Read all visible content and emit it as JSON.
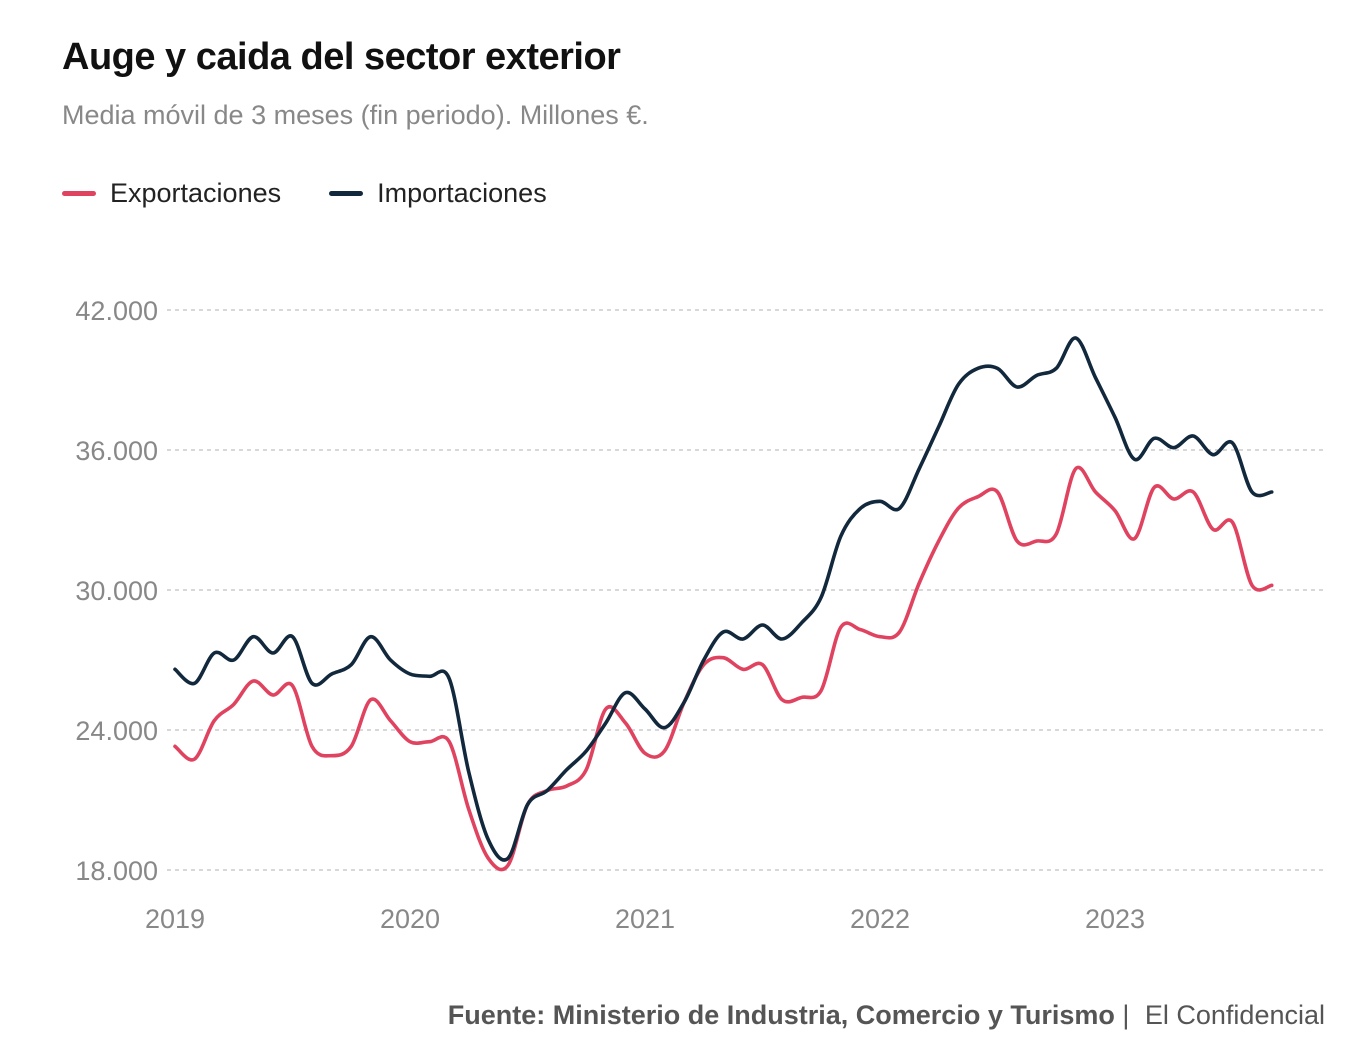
{
  "title": "Auge y caida del sector exterior",
  "subtitle": "Media móvil de 3 meses (fin periodo). Millones €.",
  "source": {
    "label": "Fuente: Ministerio de Industria, Comercio y Turismo",
    "separator": "|",
    "brand": "El Confidencial"
  },
  "colors": {
    "exports": "#e0435f",
    "imports": "#12283c",
    "grid": "#cccccc",
    "tick": "#888888"
  },
  "chart_data": {
    "type": "line",
    "title": "Auge y caida del sector exterior",
    "subtitle": "Media móvil de 3 meses (fin periodo). Millones €.",
    "xlabel": "",
    "ylabel": "",
    "ylim": [
      18000,
      42000
    ],
    "xlim": [
      2019.0,
      2024.0
    ],
    "grid": true,
    "legend_position": "top-left",
    "y_ticks": [
      {
        "value": 42000,
        "label": "42.000"
      },
      {
        "value": 36000,
        "label": "36.000"
      },
      {
        "value": 30000,
        "label": "30.000"
      },
      {
        "value": 24000,
        "label": "24.000"
      },
      {
        "value": 18000,
        "label": "18.000"
      }
    ],
    "x_ticks": [
      {
        "value": 2019,
        "label": "2019"
      },
      {
        "value": 2020,
        "label": "2020"
      },
      {
        "value": 2021,
        "label": "2021"
      },
      {
        "value": 2022,
        "label": "2022"
      },
      {
        "value": 2023,
        "label": "2023"
      }
    ],
    "x": [
      2019.0,
      2019.083,
      2019.167,
      2019.25,
      2019.333,
      2019.417,
      2019.5,
      2019.583,
      2019.667,
      2019.75,
      2019.833,
      2019.917,
      2020.0,
      2020.083,
      2020.167,
      2020.25,
      2020.333,
      2020.417,
      2020.5,
      2020.583,
      2020.667,
      2020.75,
      2020.833,
      2020.917,
      2021.0,
      2021.083,
      2021.167,
      2021.25,
      2021.333,
      2021.417,
      2021.5,
      2021.583,
      2021.667,
      2021.75,
      2021.833,
      2021.917,
      2022.0,
      2022.083,
      2022.167,
      2022.25,
      2022.333,
      2022.417,
      2022.5,
      2022.583,
      2022.667,
      2022.75,
      2022.833,
      2022.917,
      2023.0,
      2023.083,
      2023.167,
      2023.25,
      2023.333,
      2023.417,
      2023.5,
      2023.583,
      2023.667
    ],
    "series": [
      {
        "name": "Exportaciones",
        "color": "#e0435f",
        "values": [
          23300,
          22750,
          24400,
          25100,
          26100,
          25500,
          25900,
          23300,
          22900,
          23300,
          25300,
          24400,
          23500,
          23500,
          23500,
          20600,
          18500,
          18200,
          20800,
          21400,
          21600,
          22300,
          24900,
          24300,
          23000,
          23100,
          25200,
          26800,
          27100,
          26600,
          26800,
          25300,
          25400,
          25700,
          28400,
          28300,
          28000,
          28200,
          30300,
          32100,
          33500,
          34000,
          34200,
          32100,
          32100,
          32400,
          35200,
          34200,
          33400,
          32200,
          34400,
          33900,
          34200,
          32600,
          32900,
          30200,
          30200
        ]
      },
      {
        "name": "Importaciones",
        "color": "#12283c",
        "values": [
          26600,
          26000,
          27300,
          27000,
          28000,
          27300,
          28000,
          26000,
          26400,
          26800,
          28000,
          27000,
          26400,
          26300,
          26200,
          22200,
          19300,
          18500,
          20800,
          21400,
          22300,
          23100,
          24300,
          25600,
          24900,
          24100,
          25200,
          27000,
          28200,
          27900,
          28500,
          27900,
          28600,
          29700,
          32300,
          33500,
          33800,
          33500,
          35200,
          37000,
          38800,
          39500,
          39500,
          38700,
          39200,
          39500,
          40800,
          39100,
          37400,
          35600,
          36500,
          36100,
          36600,
          35800,
          36300,
          34200,
          34200
        ]
      }
    ]
  }
}
